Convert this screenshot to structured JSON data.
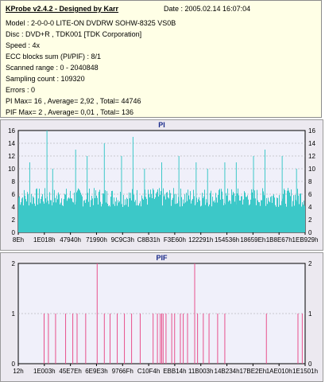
{
  "header": {
    "title": "KProbe v2.4.2 - Designed by Karr",
    "date": "Date : 2005.02.14 16:07:04",
    "lines": [
      "Model : 2-0-0-0 LITE-ON DVDRW SOHW-8325  VS0B",
      "Disc : DVD+R , TDK001 [TDK Corporation]",
      "Speed : 4x",
      "ECC blocks sum (PI/PIF) : 8/1",
      "Scanned range : 0 - 2040848",
      "Sampling count : 109320",
      "Errors : 0",
      "PI Max= 16 , Average= 2,92 , Total= 44746",
      "PIF Max= 2 , Average= 0,01 , Total= 136"
    ]
  },
  "colors": {
    "pi": "#3cc8c8",
    "pif": "#e8508c",
    "plot_bg": "#f0f0fa",
    "panel_bg": "#ece9f0"
  },
  "chart_data": [
    {
      "type": "bar",
      "title": "PI",
      "ylim": [
        0,
        16
      ],
      "yticks": [
        0,
        2,
        4,
        6,
        8,
        10,
        12,
        14,
        16
      ],
      "x_tick_labels": [
        "8Eh",
        "1E018h",
        "47940h",
        "71990h",
        "9C9C3h",
        "C8B31h",
        "F3E60h",
        "122291h",
        "154536h",
        "18659Eh",
        "1B8E67h",
        "1EB929h"
      ],
      "baseline_range": [
        4,
        7
      ],
      "spikes": [
        {
          "pos": 0.04,
          "value": 11
        },
        {
          "pos": 0.1,
          "value": 16
        },
        {
          "pos": 0.12,
          "value": 10
        },
        {
          "pos": 0.2,
          "value": 13
        },
        {
          "pos": 0.24,
          "value": 12
        },
        {
          "pos": 0.3,
          "value": 14
        },
        {
          "pos": 0.36,
          "value": 12
        },
        {
          "pos": 0.4,
          "value": 15
        },
        {
          "pos": 0.44,
          "value": 10
        },
        {
          "pos": 0.5,
          "value": 11
        },
        {
          "pos": 0.56,
          "value": 12
        },
        {
          "pos": 0.62,
          "value": 11
        },
        {
          "pos": 0.66,
          "value": 10
        },
        {
          "pos": 0.72,
          "value": 11
        },
        {
          "pos": 0.76,
          "value": 11
        },
        {
          "pos": 0.82,
          "value": 12
        },
        {
          "pos": 0.86,
          "value": 13
        },
        {
          "pos": 0.92,
          "value": 12
        },
        {
          "pos": 0.97,
          "value": 10
        }
      ]
    },
    {
      "type": "bar",
      "title": "PIF",
      "ylim": [
        0,
        2
      ],
      "yticks": [
        0,
        1,
        2
      ],
      "x_tick_labels": [
        "12h",
        "1E003h",
        "45E7Eh",
        "6E9E3h",
        "9766Fh",
        "C10F4h",
        "EBB14h",
        "11B003h",
        "14B234h",
        "17BE2Eh",
        "1AE010h",
        "1E1501h"
      ],
      "spikes": [
        {
          "pos": 0.09,
          "value": 1
        },
        {
          "pos": 0.105,
          "value": 1
        },
        {
          "pos": 0.13,
          "value": 1
        },
        {
          "pos": 0.165,
          "value": 1
        },
        {
          "pos": 0.19,
          "value": 1
        },
        {
          "pos": 0.205,
          "value": 1
        },
        {
          "pos": 0.235,
          "value": 1
        },
        {
          "pos": 0.275,
          "value": 2
        },
        {
          "pos": 0.3,
          "value": 1
        },
        {
          "pos": 0.32,
          "value": 1
        },
        {
          "pos": 0.345,
          "value": 1
        },
        {
          "pos": 0.37,
          "value": 1
        },
        {
          "pos": 0.395,
          "value": 1
        },
        {
          "pos": 0.425,
          "value": 1
        },
        {
          "pos": 0.47,
          "value": 1
        },
        {
          "pos": 0.485,
          "value": 1
        },
        {
          "pos": 0.495,
          "value": 1
        },
        {
          "pos": 0.5,
          "value": 1
        },
        {
          "pos": 0.505,
          "value": 1
        },
        {
          "pos": 0.515,
          "value": 1
        },
        {
          "pos": 0.535,
          "value": 1
        },
        {
          "pos": 0.545,
          "value": 1
        },
        {
          "pos": 0.565,
          "value": 1
        },
        {
          "pos": 0.575,
          "value": 1
        },
        {
          "pos": 0.59,
          "value": 1
        },
        {
          "pos": 0.615,
          "value": 2
        },
        {
          "pos": 0.625,
          "value": 1
        },
        {
          "pos": 0.645,
          "value": 1
        },
        {
          "pos": 0.665,
          "value": 1
        },
        {
          "pos": 0.695,
          "value": 1
        },
        {
          "pos": 0.72,
          "value": 1
        },
        {
          "pos": 0.865,
          "value": 1
        },
        {
          "pos": 0.975,
          "value": 1
        },
        {
          "pos": 0.99,
          "value": 1
        }
      ]
    }
  ]
}
